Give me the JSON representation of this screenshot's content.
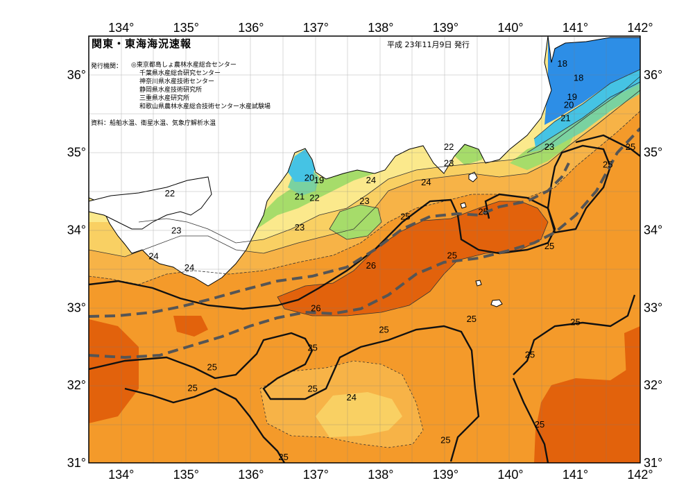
{
  "title": "関東・東海海況速報",
  "issue_date": "平成 23年11月9日 発行",
  "issuer_label": "発行機関：",
  "issuers": [
    "◎東京都島しょ農林水産総合センター",
    "千葉県水産総合研究センター",
    "神奈川県水産技術センター",
    "静岡県水産技術研究所",
    "三重県水産研究所",
    "和歌山県農林水産総合技術センター水産試験場"
  ],
  "source_note": "資料：船舶水温、衛星水温、気象庁解析水温",
  "map": {
    "lon_ticks": [
      "134°",
      "135°",
      "136°",
      "137°",
      "138°",
      "139°",
      "140°",
      "141°",
      "142°"
    ],
    "lat_ticks": [
      "36°",
      "35°",
      "34°",
      "33°",
      "32°",
      "31°"
    ],
    "lon_range": [
      133.5,
      142
    ],
    "lat_range": [
      31,
      36.5
    ],
    "colors": {
      "sea_25_26": "#f49a2a",
      "sea_26_plus": "#e2620c",
      "sea_24_25": "#f7b347",
      "sea_23_24": "#f9d063",
      "sea_22_23": "#fbe98c",
      "sea_21_22": "#a6dc6a",
      "sea_20_21": "#7ad2a0",
      "sea_19_20": "#45c3e4",
      "sea_18_19": "#2d8ee6",
      "land": "#ffffff",
      "kuroshio_axis": "#555555"
    },
    "contour_labels": [
      {
        "text": "18",
        "lon": 140.8,
        "lat": 36.15
      },
      {
        "text": "18",
        "lon": 141.05,
        "lat": 35.97
      },
      {
        "text": "19",
        "lon": 140.95,
        "lat": 35.72
      },
      {
        "text": "20",
        "lon": 140.9,
        "lat": 35.62
      },
      {
        "text": "21",
        "lon": 140.85,
        "lat": 35.45
      },
      {
        "text": "23",
        "lon": 140.6,
        "lat": 35.08
      },
      {
        "text": "25",
        "lon": 141.85,
        "lat": 35.08
      },
      {
        "text": "25",
        "lon": 141.5,
        "lat": 34.85
      },
      {
        "text": "22",
        "lon": 139.05,
        "lat": 35.08
      },
      {
        "text": "23",
        "lon": 139.05,
        "lat": 34.87
      },
      {
        "text": "24",
        "lon": 137.85,
        "lat": 34.65
      },
      {
        "text": "24",
        "lon": 138.7,
        "lat": 34.62
      },
      {
        "text": "20",
        "lon": 136.9,
        "lat": 34.68
      },
      {
        "text": "19",
        "lon": 137.05,
        "lat": 34.65
      },
      {
        "text": "21",
        "lon": 136.75,
        "lat": 34.44
      },
      {
        "text": "22",
        "lon": 136.98,
        "lat": 34.42
      },
      {
        "text": "22",
        "lon": 134.75,
        "lat": 34.48
      },
      {
        "text": "23",
        "lon": 137.75,
        "lat": 34.38
      },
      {
        "text": "23",
        "lon": 136.75,
        "lat": 34.04
      },
      {
        "text": "23",
        "lon": 134.85,
        "lat": 34.0
      },
      {
        "text": "25",
        "lon": 138.38,
        "lat": 34.18
      },
      {
        "text": "25",
        "lon": 139.58,
        "lat": 34.24
      },
      {
        "text": "24",
        "lon": 134.5,
        "lat": 33.67
      },
      {
        "text": "24",
        "lon": 135.05,
        "lat": 33.52
      },
      {
        "text": "26",
        "lon": 137.85,
        "lat": 33.55
      },
      {
        "text": "25",
        "lon": 139.1,
        "lat": 33.68
      },
      {
        "text": "25",
        "lon": 140.6,
        "lat": 33.8
      },
      {
        "text": "26",
        "lon": 137.0,
        "lat": 33.0
      },
      {
        "text": "25",
        "lon": 139.4,
        "lat": 32.86
      },
      {
        "text": "25",
        "lon": 141.0,
        "lat": 32.82
      },
      {
        "text": "25",
        "lon": 138.05,
        "lat": 32.72
      },
      {
        "text": "25",
        "lon": 136.95,
        "lat": 32.49
      },
      {
        "text": "25",
        "lon": 140.3,
        "lat": 32.4
      },
      {
        "text": "25",
        "lon": 135.4,
        "lat": 32.24
      },
      {
        "text": "25",
        "lon": 136.95,
        "lat": 31.96
      },
      {
        "text": "25",
        "lon": 135.1,
        "lat": 31.97
      },
      {
        "text": "24",
        "lon": 137.55,
        "lat": 31.85
      },
      {
        "text": "25",
        "lon": 140.45,
        "lat": 31.5
      },
      {
        "text": "25",
        "lon": 139.0,
        "lat": 31.3
      },
      {
        "text": "25",
        "lon": 136.5,
        "lat": 31.08
      }
    ]
  }
}
